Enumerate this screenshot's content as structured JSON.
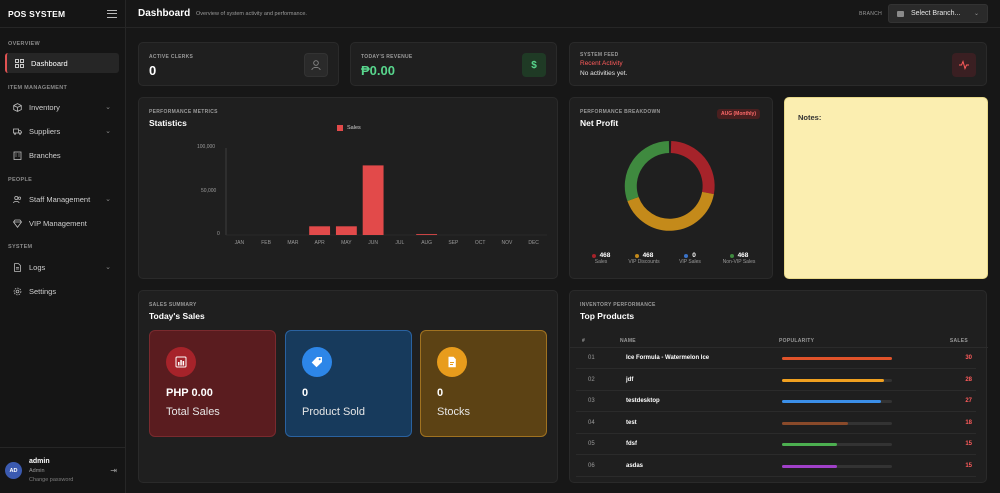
{
  "app": {
    "name": "POS SYSTEM"
  },
  "sidebar": {
    "sections": {
      "overview": "OVERVIEW",
      "item_management": "ITEM MANAGEMENT",
      "people": "PEOPLE",
      "system": "SYSTEM"
    },
    "items": [
      {
        "label": "Dashboard",
        "icon": "grid-icon",
        "active": true
      },
      {
        "label": "Inventory",
        "icon": "box-icon",
        "expandable": true
      },
      {
        "label": "Suppliers",
        "icon": "truck-icon",
        "expandable": true
      },
      {
        "label": "Branches",
        "icon": "building-icon"
      },
      {
        "label": "Staff Management",
        "icon": "users-icon",
        "expandable": true
      },
      {
        "label": "VIP Management",
        "icon": "diamond-icon"
      },
      {
        "label": "Logs",
        "icon": "file-icon",
        "expandable": true
      },
      {
        "label": "Settings",
        "icon": "gear-icon"
      }
    ],
    "user": {
      "initials": "AD",
      "name": "admin",
      "role": "Admin",
      "change_password": "Change password"
    }
  },
  "header": {
    "title": "Dashboard",
    "subtitle": "Overview of system activity and performance.",
    "branch_label": "BRANCH",
    "branch_select": "Select Branch..."
  },
  "stats": {
    "active_clerks": {
      "label": "ACTIVE CLERKS",
      "value": "0"
    },
    "revenue": {
      "label": "TODAY'S REVENUE",
      "value": "₱0.00"
    },
    "feed": {
      "label": "SYSTEM FEED",
      "title": "Recent Activity",
      "text": "No activities yet."
    }
  },
  "statistics": {
    "label": "PERFORMANCE METRICS",
    "title": "Statistics",
    "legend": "Sales",
    "y_ticks": [
      "100,000",
      "50,000",
      "0"
    ]
  },
  "chart_data": {
    "type": "bar",
    "categories": [
      "JAN",
      "FEB",
      "MAR",
      "APR",
      "MAY",
      "JUN",
      "JUL",
      "AUG",
      "SEP",
      "OCT",
      "NOV",
      "DEC"
    ],
    "series": [
      {
        "name": "Sales",
        "values": [
          0,
          0,
          0,
          10000,
          10000,
          80000,
          0,
          1000,
          0,
          0,
          0,
          0
        ]
      }
    ],
    "ylim": [
      0,
      100000
    ],
    "color": "#e24a4a"
  },
  "net_profit": {
    "label": "PERFORMANCE BREAKDOWN",
    "title": "Net Profit",
    "badge": "AUG (Monthly)",
    "segments": [
      {
        "name": "Sales",
        "value": "468",
        "color": "#a6232a"
      },
      {
        "name": "VIP Discounts",
        "value": "468",
        "color": "#c48a1a"
      },
      {
        "name": "VIP Sales",
        "value": "0",
        "color": "#3a73c8"
      },
      {
        "name": "Non-VIP Sales",
        "value": "468",
        "color": "#3f8a3f"
      }
    ]
  },
  "notes": {
    "label": "Notes:"
  },
  "sales_summary": {
    "label": "SALES SUMMARY",
    "title": "Today's Sales",
    "tiles": [
      {
        "value": "PHP 0.00",
        "label": "Total Sales",
        "icon": "chart-icon"
      },
      {
        "value": "0",
        "label": "Product Sold",
        "icon": "tag-icon"
      },
      {
        "value": "0",
        "label": "Stocks",
        "icon": "document-icon"
      }
    ]
  },
  "top_products": {
    "label": "INVENTORY PERFORMANCE",
    "title": "Top Products",
    "headers": {
      "rank": "#",
      "name": "NAME",
      "popularity": "POPULARITY",
      "sales": "SALES"
    },
    "rows": [
      {
        "rank": "01",
        "name": "Ice Formula - Watermelon Ice",
        "sales": "30",
        "popularity": 1.0,
        "color": "#e0532a"
      },
      {
        "rank": "02",
        "name": "jdf",
        "sales": "28",
        "popularity": 0.93,
        "color": "#f0a020"
      },
      {
        "rank": "03",
        "name": "testdesktop",
        "sales": "27",
        "popularity": 0.9,
        "color": "#3b8fe8"
      },
      {
        "rank": "04",
        "name": "test",
        "sales": "18",
        "popularity": 0.6,
        "color": "#8a4a2a"
      },
      {
        "rank": "05",
        "name": "fdsf",
        "sales": "15",
        "popularity": 0.5,
        "color": "#4caf50"
      },
      {
        "rank": "06",
        "name": "asdas",
        "sales": "15",
        "popularity": 0.5,
        "color": "#a040c8"
      }
    ]
  }
}
